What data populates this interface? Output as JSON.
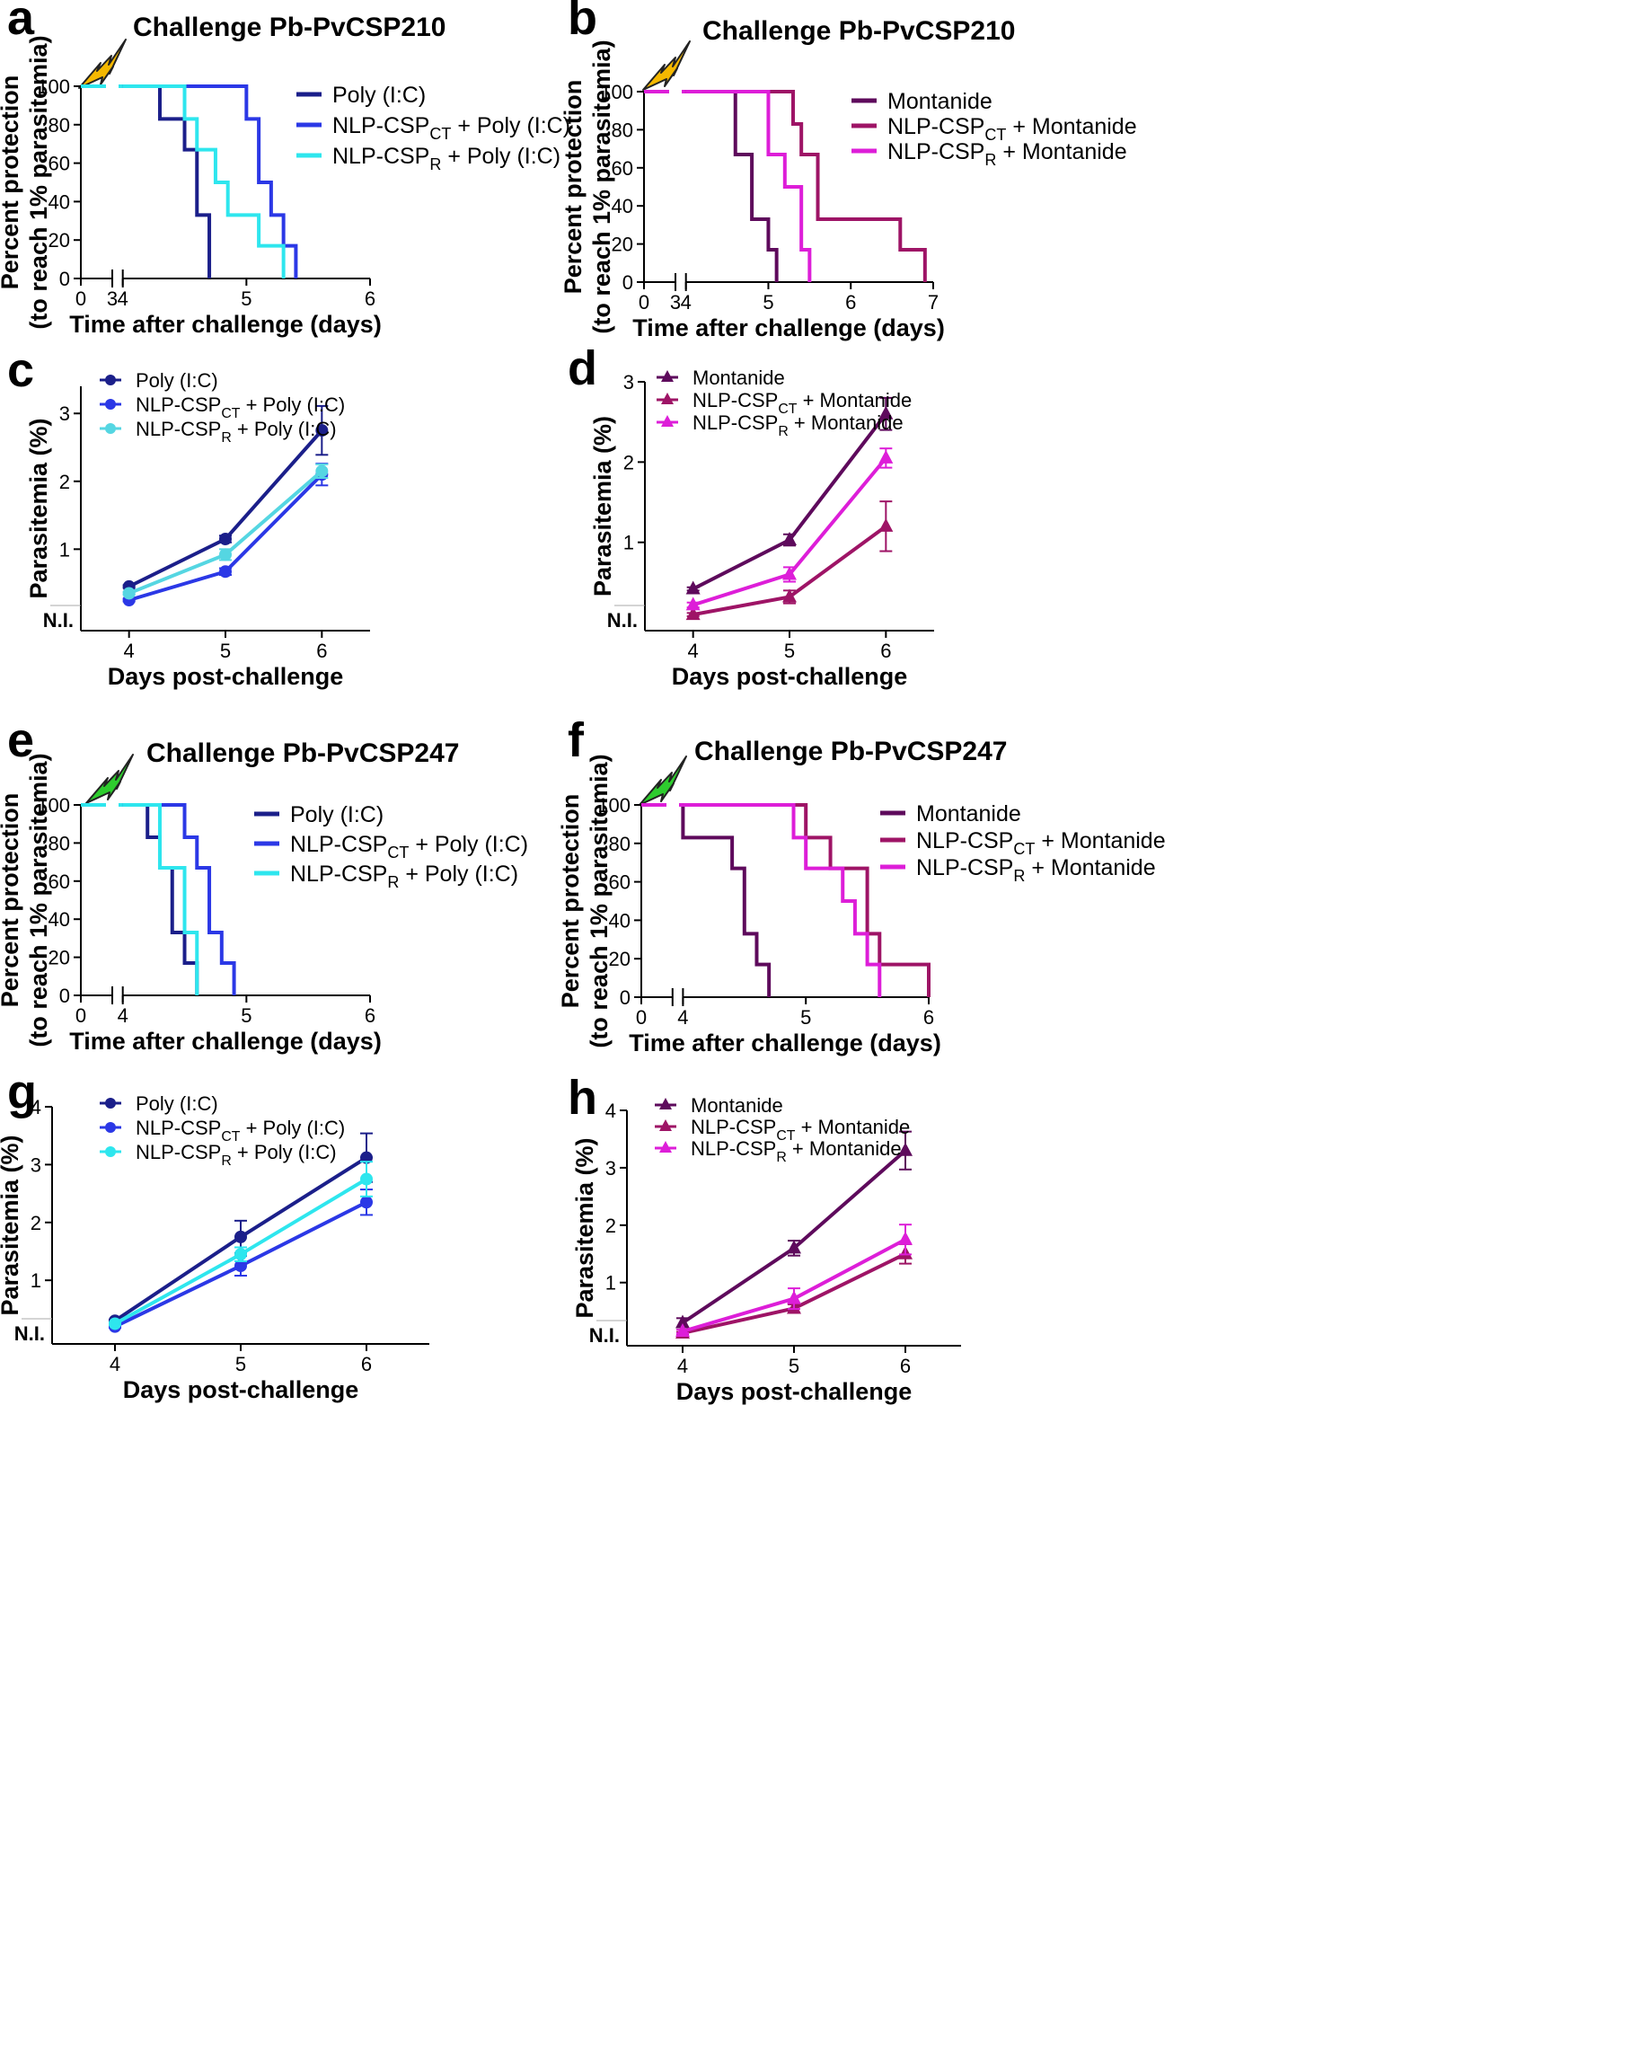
{
  "figure": "Protection and parasitemia after challenge",
  "chart_data": [
    {
      "panel": "a",
      "type": "line",
      "subtype": "survival",
      "title": "Challenge Pb-PvCSP210",
      "bolt_color": "#F5B800",
      "xlabel": "Time after challenge (days)",
      "ylabel": "Percent protection",
      "ylabel2": "(to reach 1% parasitemia)",
      "xlim": [
        0,
        6
      ],
      "ylim": [
        0,
        100
      ],
      "axis_break": [
        3,
        4
      ],
      "xticks": [
        0,
        3,
        4,
        5,
        6
      ],
      "xtick_labels": [
        "0",
        "3",
        "4",
        "5",
        "6"
      ],
      "yticks": [
        0,
        20,
        40,
        60,
        80,
        100
      ],
      "ytick_labels": [
        "0",
        "20",
        "40",
        "60",
        "80",
        "100"
      ],
      "series": [
        {
          "name": "Poly (I:C)",
          "color": "#1B1F8A",
          "steps": [
            [
              4.3,
              83
            ],
            [
              4.5,
              67
            ],
            [
              4.6,
              33
            ],
            [
              4.7,
              0
            ]
          ]
        },
        {
          "name": "NLP-CSP_CT + Poly (I:C)",
          "color": "#2B38E6",
          "steps": [
            [
              5.0,
              83
            ],
            [
              5.1,
              50
            ],
            [
              5.2,
              33
            ],
            [
              5.3,
              17
            ],
            [
              5.4,
              0
            ]
          ]
        },
        {
          "name": "NLP-CSP_R + Poly (I:C)",
          "color": "#2EE6EE",
          "steps": [
            [
              4.5,
              83
            ],
            [
              4.6,
              67
            ],
            [
              4.75,
              50
            ],
            [
              4.85,
              33
            ],
            [
              5.1,
              17
            ],
            [
              5.3,
              0
            ]
          ]
        }
      ]
    },
    {
      "panel": "b",
      "type": "line",
      "subtype": "survival",
      "title": "Challenge Pb-PvCSP210",
      "bolt_color": "#F5B800",
      "xlabel": "Time after challenge (days)",
      "ylabel": "Percent protection",
      "ylabel2": "(to reach 1% parasitemia)",
      "xlim": [
        0,
        7
      ],
      "ylim": [
        0,
        100
      ],
      "axis_break": [
        3,
        4
      ],
      "xticks": [
        0,
        3,
        4,
        5,
        6,
        7
      ],
      "xtick_labels": [
        "0",
        "3",
        "4",
        "5",
        "6",
        "7"
      ],
      "yticks": [
        0,
        20,
        40,
        60,
        80,
        100
      ],
      "ytick_labels": [
        "0",
        "20",
        "40",
        "60",
        "80",
        "100"
      ],
      "series": [
        {
          "name": "Montanide",
          "color": "#5E0A5C",
          "steps": [
            [
              4.6,
              67
            ],
            [
              4.8,
              33
            ],
            [
              5.0,
              17
            ],
            [
              5.1,
              0
            ]
          ]
        },
        {
          "name": "NLP-CSP_CT + Montanide",
          "color": "#9E1466",
          "steps": [
            [
              5.3,
              83
            ],
            [
              5.4,
              67
            ],
            [
              5.6,
              33
            ],
            [
              6.6,
              17
            ],
            [
              6.9,
              0
            ]
          ]
        },
        {
          "name": "NLP-CSP_R + Montanide",
          "color": "#DD1ED8",
          "steps": [
            [
              5.0,
              67
            ],
            [
              5.2,
              50
            ],
            [
              5.4,
              17
            ],
            [
              5.5,
              0
            ]
          ]
        }
      ]
    },
    {
      "panel": "c",
      "type": "line",
      "marker": "circle",
      "xlabel": "Days post-challenge",
      "ylabel": "Parasitemia (%)",
      "xlim": [
        3.5,
        6.5
      ],
      "ylim": [
        -0.2,
        3.4
      ],
      "ni_label": "N.I.",
      "xticks": [
        4,
        5,
        6
      ],
      "xtick_labels": [
        "4",
        "5",
        "6"
      ],
      "yticks": [
        1,
        2,
        3
      ],
      "ytick_labels": [
        "1",
        "2",
        "3"
      ],
      "x": [
        4,
        5,
        6
      ],
      "series": [
        {
          "name": "Poly (I:C)",
          "color": "#1B1F8A",
          "values": [
            0.45,
            1.15,
            2.75
          ],
          "err": [
            0.02,
            0.05,
            0.36
          ]
        },
        {
          "name": "NLP-CSP_CT + Poly (I:C)",
          "color": "#2B38E6",
          "values": [
            0.25,
            0.67,
            2.1
          ],
          "err": [
            0.02,
            0.05,
            0.16
          ]
        },
        {
          "name": "NLP-CSP_R + Poly (I:C)",
          "color": "#55D6E2",
          "values": [
            0.35,
            0.92,
            2.15
          ],
          "err": [
            0.02,
            0.08,
            0.1
          ]
        }
      ]
    },
    {
      "panel": "d",
      "type": "line",
      "marker": "triangle",
      "xlabel": "Days post-challenge",
      "ylabel": "Parasitemia (%)",
      "xlim": [
        3.5,
        6.5
      ],
      "ylim": [
        -0.1,
        3.0
      ],
      "ni_label": "N.I.",
      "xticks": [
        4,
        5,
        6
      ],
      "xtick_labels": [
        "4",
        "5",
        "6"
      ],
      "yticks": [
        1,
        2,
        3
      ],
      "ytick_labels": [
        "1",
        "2",
        "3"
      ],
      "x": [
        4,
        5,
        6
      ],
      "series": [
        {
          "name": "Montanide",
          "color": "#5E0A5C",
          "values": [
            0.42,
            1.03,
            2.6
          ],
          "err": [
            0.02,
            0.07,
            0.2
          ]
        },
        {
          "name": "NLP-CSP_CT + Montanide",
          "color": "#9E1466",
          "values": [
            0.1,
            0.32,
            1.2
          ],
          "err": [
            0.02,
            0.08,
            0.31
          ]
        },
        {
          "name": "NLP-CSP_R + Montanide",
          "color": "#DD1ED8",
          "values": [
            0.22,
            0.6,
            2.05
          ],
          "err": [
            0.03,
            0.09,
            0.12
          ]
        }
      ]
    },
    {
      "panel": "e",
      "type": "line",
      "subtype": "survival",
      "title": "Challenge Pb-PvCSP247",
      "bolt_color": "#2ECC2E",
      "xlabel": "Time after challenge (days)",
      "ylabel": "Percent protection",
      "ylabel2": "(to reach 1% parasitemia)",
      "xlim": [
        0,
        6
      ],
      "ylim": [
        0,
        100
      ],
      "axis_break": [
        3,
        4
      ],
      "xticks": [
        0,
        4,
        5,
        6
      ],
      "xtick_labels": [
        "0",
        "4",
        "5",
        "6"
      ],
      "yticks": [
        0,
        20,
        40,
        60,
        80,
        100
      ],
      "ytick_labels": [
        "0",
        "20",
        "40",
        "60",
        "80",
        "100"
      ],
      "series": [
        {
          "name": "Poly (I:C)",
          "color": "#1B1F8A",
          "steps": [
            [
              4.2,
              83
            ],
            [
              4.3,
              67
            ],
            [
              4.4,
              33
            ],
            [
              4.5,
              17
            ],
            [
              4.6,
              0
            ]
          ]
        },
        {
          "name": "NLP-CSP_CT + Poly (I:C)",
          "color": "#2B38E6",
          "steps": [
            [
              4.5,
              83
            ],
            [
              4.6,
              67
            ],
            [
              4.7,
              33
            ],
            [
              4.8,
              17
            ],
            [
              4.9,
              0
            ]
          ]
        },
        {
          "name": "NLP-CSP_R + Poly (I:C)",
          "color": "#2EE6EE",
          "steps": [
            [
              4.3,
              67
            ],
            [
              4.5,
              33
            ],
            [
              4.6,
              0
            ]
          ]
        }
      ]
    },
    {
      "panel": "f",
      "type": "line",
      "subtype": "survival",
      "title": "Challenge Pb-PvCSP247",
      "bolt_color": "#2ECC2E",
      "xlabel": "Time after challenge (days)",
      "ylabel": "Percent protection",
      "ylabel2": "(to reach 1% parasitemia)",
      "xlim": [
        0,
        6
      ],
      "ylim": [
        0,
        100
      ],
      "axis_break": [
        3,
        4
      ],
      "xticks": [
        0,
        4,
        5,
        6
      ],
      "xtick_labels": [
        "0",
        "4",
        "5",
        "6"
      ],
      "yticks": [
        0,
        20,
        40,
        60,
        80,
        100
      ],
      "ytick_labels": [
        "0",
        "20",
        "40",
        "60",
        "80",
        "100"
      ],
      "series": [
        {
          "name": "Montanide",
          "color": "#5E0A5C",
          "steps": [
            [
              4.0,
              83
            ],
            [
              4.4,
              67
            ],
            [
              4.5,
              33
            ],
            [
              4.6,
              17
            ],
            [
              4.7,
              0
            ]
          ]
        },
        {
          "name": "NLP-CSP_CT + Montanide",
          "color": "#9E1466",
          "steps": [
            [
              5.0,
              83
            ],
            [
              5.2,
              67
            ],
            [
              5.5,
              33
            ],
            [
              5.6,
              17
            ],
            [
              6.0,
              0
            ]
          ]
        },
        {
          "name": "NLP-CSP_R + Montanide",
          "color": "#DD1ED8",
          "steps": [
            [
              4.9,
              83
            ],
            [
              5.0,
              67
            ],
            [
              5.3,
              50
            ],
            [
              5.4,
              33
            ],
            [
              5.5,
              17
            ],
            [
              5.6,
              0
            ]
          ]
        }
      ]
    },
    {
      "panel": "g",
      "type": "line",
      "marker": "circle",
      "xlabel": "Days post-challenge",
      "ylabel": "Parasitemia (%)",
      "xlim": [
        3.5,
        6.5
      ],
      "ylim": [
        -0.1,
        4.0
      ],
      "ni_label": "N.I.",
      "xticks": [
        4,
        5,
        6
      ],
      "xtick_labels": [
        "4",
        "5",
        "6"
      ],
      "yticks": [
        1,
        2,
        3,
        4
      ],
      "ytick_labels": [
        "1",
        "2",
        "3",
        "4"
      ],
      "x": [
        4,
        5,
        6
      ],
      "series": [
        {
          "name": "Poly (I:C)",
          "color": "#1B1F8A",
          "values": [
            0.3,
            1.75,
            3.12
          ],
          "err": [
            0.02,
            0.28,
            0.42
          ]
        },
        {
          "name": "NLP-CSP_CT + Poly (I:C)",
          "color": "#2B38E6",
          "values": [
            0.2,
            1.25,
            2.35
          ],
          "err": [
            0.02,
            0.17,
            0.22
          ]
        },
        {
          "name": "NLP-CSP_R + Poly (I:C)",
          "color": "#2EE6EE",
          "values": [
            0.25,
            1.45,
            2.75
          ],
          "err": [
            0.02,
            0.12,
            0.3
          ]
        }
      ]
    },
    {
      "panel": "h",
      "type": "line",
      "marker": "triangle",
      "xlabel": "Days post-challenge",
      "ylabel": "Parasitemia (%)",
      "xlim": [
        3.5,
        6.5
      ],
      "ylim": [
        -0.1,
        4.0
      ],
      "ni_label": "N.I.",
      "xticks": [
        4,
        5,
        6
      ],
      "xtick_labels": [
        "4",
        "5",
        "6"
      ],
      "yticks": [
        1,
        2,
        3,
        4
      ],
      "ytick_labels": [
        "1",
        "2",
        "3",
        "4"
      ],
      "x": [
        4,
        5,
        6
      ],
      "series": [
        {
          "name": "Montanide",
          "color": "#5E0A5C",
          "values": [
            0.3,
            1.6,
            3.3
          ],
          "err": [
            0.08,
            0.13,
            0.33
          ]
        },
        {
          "name": "NLP-CSP_CT + Montanide",
          "color": "#9E1466",
          "values": [
            0.12,
            0.55,
            1.5
          ],
          "err": [
            0.02,
            0.07,
            0.17
          ]
        },
        {
          "name": "NLP-CSP_R + Montanide",
          "color": "#DD1ED8",
          "values": [
            0.15,
            0.72,
            1.75
          ],
          "err": [
            0.03,
            0.18,
            0.26
          ]
        }
      ]
    }
  ]
}
